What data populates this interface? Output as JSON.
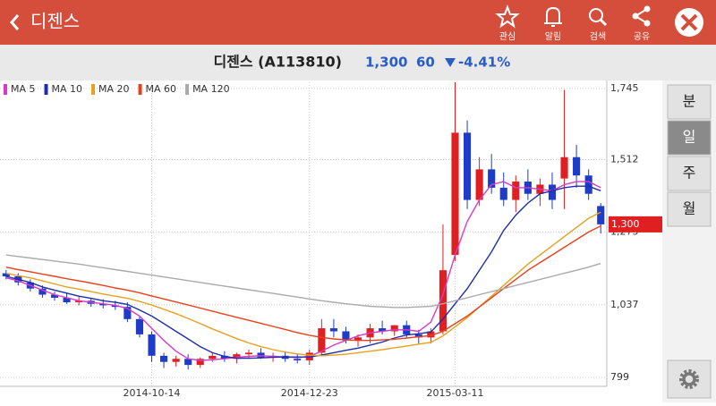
{
  "header": {
    "title": "디젠스",
    "actions": [
      "관심",
      "알림",
      "검색",
      "공유"
    ]
  },
  "stock": {
    "name": "디젠스 (A113810)",
    "price": "1,300",
    "change": "60",
    "change_pct": "-4.41%"
  },
  "periods": [
    {
      "label": "분",
      "selected": false
    },
    {
      "label": "일",
      "selected": true
    },
    {
      "label": "주",
      "selected": false
    },
    {
      "label": "월",
      "selected": false
    }
  ],
  "chart_data": {
    "type": "candlestick",
    "x": [
      null,
      null,
      null,
      null,
      null,
      null,
      null,
      null,
      null,
      null,
      null,
      null,
      "2014-10-14",
      null,
      null,
      null,
      null,
      null,
      null,
      null,
      null,
      null,
      null,
      null,
      null,
      "2014-12-23",
      null,
      null,
      null,
      null,
      null,
      null,
      null,
      null,
      null,
      null,
      null,
      "2015-03-11",
      null,
      null,
      null,
      null,
      null,
      null,
      null,
      null,
      null,
      null,
      null,
      null
    ],
    "open": [
      1140,
      1130,
      1110,
      1090,
      1070,
      1060,
      1045,
      1050,
      1040,
      1035,
      1030,
      990,
      940,
      870,
      850,
      860,
      840,
      860,
      870,
      860,
      875,
      880,
      865,
      870,
      860,
      855,
      880,
      960,
      950,
      920,
      930,
      960,
      950,
      970,
      940,
      930,
      950,
      1200,
      1600,
      1380,
      1480,
      1420,
      1380,
      1440,
      1400,
      1430,
      1450,
      1520,
      1460,
      1360
    ],
    "high": [
      1150,
      1140,
      1120,
      1100,
      1080,
      1075,
      1065,
      1060,
      1055,
      1050,
      1045,
      1000,
      950,
      880,
      870,
      875,
      865,
      880,
      885,
      880,
      890,
      895,
      880,
      885,
      875,
      890,
      990,
      990,
      965,
      940,
      975,
      985,
      970,
      985,
      955,
      960,
      1300,
      1765,
      1640,
      1520,
      1530,
      1470,
      1460,
      1480,
      1450,
      1470,
      1740,
      1560,
      1480,
      1370
    ],
    "low": [
      1120,
      1100,
      1080,
      1060,
      1050,
      1040,
      1035,
      1030,
      1025,
      1020,
      980,
      930,
      850,
      830,
      835,
      825,
      830,
      850,
      850,
      845,
      860,
      860,
      850,
      850,
      845,
      840,
      870,
      930,
      910,
      900,
      910,
      940,
      935,
      930,
      910,
      910,
      940,
      1180,
      1350,
      1360,
      1400,
      1360,
      1340,
      1380,
      1360,
      1350,
      1350,
      1420,
      1380,
      1270
    ],
    "close": [
      1130,
      1110,
      1090,
      1070,
      1060,
      1045,
      1050,
      1040,
      1035,
      1030,
      990,
      940,
      870,
      850,
      860,
      840,
      860,
      870,
      860,
      875,
      880,
      865,
      870,
      860,
      855,
      880,
      960,
      950,
      920,
      930,
      960,
      950,
      970,
      940,
      930,
      950,
      1150,
      1600,
      1380,
      1480,
      1420,
      1380,
      1440,
      1400,
      1430,
      1380,
      1520,
      1460,
      1400,
      1300
    ],
    "series": [
      {
        "name": "MA 5",
        "color": "#d63bc8",
        "values": [
          1125,
          1115,
          1100,
          1085,
          1070,
          1060,
          1050,
          1045,
          1040,
          1035,
          1025,
          1000,
          960,
          920,
          885,
          860,
          855,
          857,
          860,
          865,
          868,
          870,
          868,
          866,
          864,
          868,
          885,
          905,
          920,
          935,
          945,
          950,
          955,
          955,
          950,
          980,
          1070,
          1200,
          1310,
          1380,
          1430,
          1440,
          1420,
          1420,
          1415,
          1410,
          1430,
          1440,
          1440,
          1420
        ]
      },
      {
        "name": "MA 10",
        "color": "#1c2fa8",
        "values": [
          1130,
          1120,
          1110,
          1095,
          1085,
          1075,
          1065,
          1058,
          1050,
          1045,
          1038,
          1020,
          1000,
          975,
          950,
          925,
          900,
          880,
          868,
          862,
          862,
          863,
          865,
          866,
          866,
          866,
          872,
          880,
          888,
          895,
          905,
          915,
          928,
          938,
          942,
          948,
          990,
          1040,
          1090,
          1150,
          1210,
          1280,
          1330,
          1370,
          1400,
          1410,
          1420,
          1425,
          1425,
          1410
        ]
      },
      {
        "name": "MA 20",
        "color": "#e8a020",
        "values": [
          1140,
          1132,
          1125,
          1115,
          1105,
          1095,
          1088,
          1080,
          1072,
          1065,
          1058,
          1048,
          1036,
          1022,
          1008,
          992,
          975,
          958,
          942,
          926,
          912,
          900,
          890,
          882,
          876,
          872,
          870,
          872,
          875,
          880,
          885,
          890,
          896,
          902,
          908,
          914,
          935,
          965,
          995,
          1030,
          1065,
          1100,
          1135,
          1170,
          1200,
          1230,
          1260,
          1290,
          1320,
          1340
        ]
      },
      {
        "name": "MA 60",
        "color": "#e8401c",
        "values": [
          1160,
          1152,
          1145,
          1137,
          1130,
          1122,
          1115,
          1108,
          1100,
          1092,
          1085,
          1076,
          1066,
          1056,
          1046,
          1036,
          1026,
          1016,
          1006,
          996,
          986,
          976,
          966,
          956,
          946,
          937,
          930,
          925,
          922,
          920,
          920,
          922,
          924,
          928,
          932,
          936,
          950,
          975,
          1000,
          1030,
          1060,
          1090,
          1120,
          1150,
          1175,
          1200,
          1225,
          1250,
          1275,
          1295
        ]
      },
      {
        "name": "MA 120",
        "color": "#aaaaaa",
        "values": [
          1200,
          1195,
          1190,
          1185,
          1180,
          1175,
          1170,
          1164,
          1158,
          1152,
          1146,
          1140,
          1134,
          1128,
          1122,
          1116,
          1110,
          1104,
          1098,
          1092,
          1086,
          1080,
          1074,
          1068,
          1062,
          1056,
          1050,
          1045,
          1040,
          1036,
          1032,
          1030,
          1028,
          1028,
          1030,
          1032,
          1040,
          1050,
          1060,
          1070,
          1080,
          1090,
          1100,
          1110,
          1120,
          1130,
          1140,
          1150,
          1160,
          1172
        ]
      }
    ],
    "up_color": "#e02020",
    "down_color": "#1e3cc8",
    "ylim": [
      770,
      1765
    ],
    "yticks": [
      {
        "value": 1745,
        "label": "1,745"
      },
      {
        "value": 1512,
        "label": "1,512"
      },
      {
        "value": 1275,
        "label": "1,275"
      },
      {
        "value": 1037,
        "label": "1,037"
      },
      799
    ],
    "last_price": {
      "value": 1300,
      "label": "1,300"
    },
    "grid": true
  }
}
